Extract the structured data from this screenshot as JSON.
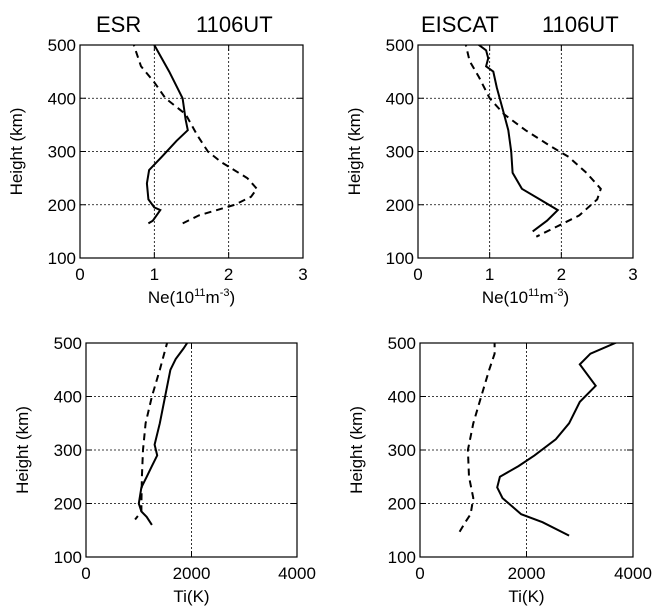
{
  "chart_data": [
    {
      "type": "line",
      "title": [
        "ESR",
        "1106UT"
      ],
      "xlabel": {
        "base": "Ne(10",
        "sup1": "11",
        "mid": "m",
        "sup2": "-3",
        "end": ")"
      },
      "ylabel": "Height (km)",
      "xlim": [
        0,
        3
      ],
      "ylim": [
        100,
        500
      ],
      "xticks": [
        0,
        1,
        2,
        3
      ],
      "yticks": [
        100,
        200,
        300,
        400,
        500
      ],
      "grid_x": [
        1,
        2
      ],
      "grid_y": [
        200,
        300,
        400
      ],
      "series": [
        {
          "style": "solid",
          "points": [
            [
              1.0,
              500
            ],
            [
              1.2,
              450
            ],
            [
              1.38,
              400
            ],
            [
              1.42,
              360
            ],
            [
              1.45,
              340
            ],
            [
              1.3,
              320
            ],
            [
              1.1,
              290
            ],
            [
              0.93,
              265
            ],
            [
              0.9,
              240
            ],
            [
              0.92,
              210
            ],
            [
              1.0,
              195
            ],
            [
              1.08,
              190
            ],
            [
              0.98,
              170
            ],
            [
              0.92,
              165
            ]
          ]
        },
        {
          "style": "dashed",
          "points": [
            [
              0.7,
              510
            ],
            [
              0.82,
              460
            ],
            [
              1.0,
              430
            ],
            [
              1.15,
              400
            ],
            [
              1.42,
              370
            ],
            [
              1.58,
              330
            ],
            [
              1.72,
              300
            ],
            [
              1.9,
              280
            ],
            [
              2.25,
              250
            ],
            [
              2.38,
              230
            ],
            [
              2.3,
              215
            ],
            [
              2.08,
              200
            ],
            [
              1.6,
              180
            ],
            [
              1.38,
              165
            ]
          ]
        }
      ]
    },
    {
      "type": "line",
      "title": [
        "EISCAT",
        "1106UT"
      ],
      "xlabel": {
        "base": "Ne(10",
        "sup1": "11",
        "mid": "m",
        "sup2": "-3",
        "end": ")"
      },
      "ylabel": "Height (km)",
      "xlim": [
        0,
        3
      ],
      "ylim": [
        100,
        500
      ],
      "xticks": [
        0,
        1,
        2,
        3
      ],
      "yticks": [
        100,
        200,
        300,
        400,
        500
      ],
      "grid_x": [
        1,
        2
      ],
      "grid_y": [
        200,
        300,
        400
      ],
      "series": [
        {
          "style": "solid",
          "points": [
            [
              0.8,
              505
            ],
            [
              0.95,
              490
            ],
            [
              0.98,
              475
            ],
            [
              0.95,
              460
            ],
            [
              1.05,
              450
            ],
            [
              1.1,
              420
            ],
            [
              1.18,
              380
            ],
            [
              1.26,
              340
            ],
            [
              1.3,
              300
            ],
            [
              1.32,
              260
            ],
            [
              1.45,
              230
            ],
            [
              1.7,
              210
            ],
            [
              1.95,
              190
            ],
            [
              1.8,
              170
            ],
            [
              1.6,
              150
            ]
          ]
        },
        {
          "style": "dashed",
          "points": [
            [
              0.65,
              510
            ],
            [
              0.72,
              470
            ],
            [
              0.85,
              440
            ],
            [
              1.0,
              400
            ],
            [
              1.2,
              370
            ],
            [
              1.5,
              340
            ],
            [
              1.85,
              310
            ],
            [
              2.1,
              290
            ],
            [
              2.35,
              260
            ],
            [
              2.55,
              230
            ],
            [
              2.5,
              210
            ],
            [
              2.25,
              180
            ],
            [
              1.95,
              160
            ],
            [
              1.65,
              140
            ]
          ]
        }
      ]
    },
    {
      "type": "line",
      "title": [],
      "xlabel": {
        "base": "Ti(K)"
      },
      "ylabel": "Height (km)",
      "xlim": [
        0,
        4000
      ],
      "ylim": [
        100,
        500
      ],
      "xticks": [
        0,
        2000,
        4000
      ],
      "yticks": [
        100,
        200,
        300,
        400,
        500
      ],
      "grid_x": [
        2000
      ],
      "grid_y": [
        200,
        300,
        400
      ],
      "series": [
        {
          "style": "solid",
          "points": [
            [
              1950,
              505
            ],
            [
              1850,
              490
            ],
            [
              1700,
              470
            ],
            [
              1600,
              450
            ],
            [
              1500,
              400
            ],
            [
              1400,
              350
            ],
            [
              1300,
              310
            ],
            [
              1350,
              290
            ],
            [
              1250,
              270
            ],
            [
              1150,
              250
            ],
            [
              1050,
              230
            ],
            [
              1000,
              200
            ],
            [
              1050,
              185
            ],
            [
              1150,
              175
            ],
            [
              1250,
              160
            ]
          ]
        },
        {
          "style": "dashed",
          "points": [
            [
              1550,
              505
            ],
            [
              1400,
              450
            ],
            [
              1250,
              400
            ],
            [
              1130,
              350
            ],
            [
              1080,
              300
            ],
            [
              1060,
              250
            ],
            [
              1050,
              200
            ],
            [
              1050,
              185
            ],
            [
              930,
              170
            ]
          ]
        }
      ]
    },
    {
      "type": "line",
      "title": [],
      "xlabel": {
        "base": "Ti(K)"
      },
      "ylabel": "Height (km)",
      "xlim": [
        0,
        4000
      ],
      "ylim": [
        100,
        500
      ],
      "xticks": [
        0,
        2000,
        4000
      ],
      "yticks": [
        100,
        200,
        300,
        400,
        500
      ],
      "grid_x": [
        2000
      ],
      "grid_y": [
        200,
        300,
        400
      ],
      "series": [
        {
          "style": "solid",
          "points": [
            [
              3900,
              510
            ],
            [
              3200,
              480
            ],
            [
              3000,
              460
            ],
            [
              3300,
              420
            ],
            [
              3000,
              390
            ],
            [
              2800,
              350
            ],
            [
              2550,
              320
            ],
            [
              2150,
              290
            ],
            [
              1850,
              270
            ],
            [
              1500,
              250
            ],
            [
              1450,
              230
            ],
            [
              1550,
              210
            ],
            [
              1900,
              180
            ],
            [
              2300,
              165
            ],
            [
              2800,
              140
            ]
          ]
        },
        {
          "style": "dashed",
          "points": [
            [
              1400,
              505
            ],
            [
              1400,
              480
            ],
            [
              1300,
              450
            ],
            [
              1150,
              400
            ],
            [
              1000,
              350
            ],
            [
              900,
              300
            ],
            [
              920,
              250
            ],
            [
              1000,
              210
            ],
            [
              950,
              180
            ],
            [
              850,
              165
            ],
            [
              700,
              140
            ]
          ]
        }
      ]
    }
  ]
}
